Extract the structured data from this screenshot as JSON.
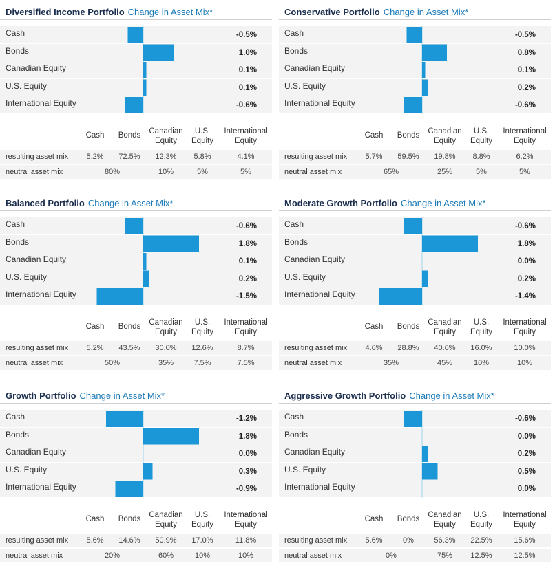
{
  "table_headers": {
    "cash": "Cash",
    "bonds": "Bonds",
    "canadian_equity": [
      "Canadian",
      "Equity"
    ],
    "us_equity": [
      "U.S.",
      "Equity"
    ],
    "international_equity": [
      "International",
      "Equity"
    ],
    "resulting_label": "resulting asset mix",
    "neutral_label": "neutral asset mix"
  },
  "colors": {
    "bar": "#1b96d6",
    "axis": "#9fd3ef"
  },
  "chart_data": [
    {
      "type": "bar",
      "orientation": "horizontal",
      "title": "Diversified Income Portfolio",
      "subtitle": "Change in Asset Mix*",
      "categories": [
        "Cash",
        "Bonds",
        "Canadian Equity",
        "U.S. Equity",
        "International Equity"
      ],
      "values": [
        -0.5,
        1.0,
        0.1,
        0.1,
        -0.6
      ],
      "value_labels": [
        "-0.5%",
        "1.0%",
        "0.1%",
        "0.1%",
        "-0.6%"
      ],
      "resulting_asset_mix": [
        "5.2%",
        "72.5%",
        "12.3%",
        "5.8%",
        "4.1%"
      ],
      "neutral_asset_mix": {
        "fixed_income": "80%",
        "canadian_equity": "10%",
        "us_equity": "5%",
        "international_equity": "5%"
      }
    },
    {
      "type": "bar",
      "orientation": "horizontal",
      "title": "Conservative Portfolio",
      "subtitle": "Change in Asset Mix*",
      "categories": [
        "Cash",
        "Bonds",
        "Canadian Equity",
        "U.S. Equity",
        "International Equity"
      ],
      "values": [
        -0.5,
        0.8,
        0.1,
        0.2,
        -0.6
      ],
      "value_labels": [
        "-0.5%",
        "0.8%",
        "0.1%",
        "0.2%",
        "-0.6%"
      ],
      "resulting_asset_mix": [
        "5.7%",
        "59.5%",
        "19.8%",
        "8.8%",
        "6.2%"
      ],
      "neutral_asset_mix": {
        "fixed_income": "65%",
        "canadian_equity": "25%",
        "us_equity": "5%",
        "international_equity": "5%"
      }
    },
    {
      "type": "bar",
      "orientation": "horizontal",
      "title": "Balanced Portfolio",
      "subtitle": "Change in Asset Mix*",
      "categories": [
        "Cash",
        "Bonds",
        "Canadian Equity",
        "U.S. Equity",
        "International Equity"
      ],
      "values": [
        -0.6,
        1.8,
        0.1,
        0.2,
        -1.5
      ],
      "value_labels": [
        "-0.6%",
        "1.8%",
        "0.1%",
        "0.2%",
        "-1.5%"
      ],
      "resulting_asset_mix": [
        "5.2%",
        "43.5%",
        "30.0%",
        "12.6%",
        "8.7%"
      ],
      "neutral_asset_mix": {
        "fixed_income": "50%",
        "canadian_equity": "35%",
        "us_equity": "7.5%",
        "international_equity": "7.5%"
      }
    },
    {
      "type": "bar",
      "orientation": "horizontal",
      "title": "Moderate Growth Portfolio",
      "subtitle": "Change in Asset Mix*",
      "categories": [
        "Cash",
        "Bonds",
        "Canadian Equity",
        "U.S. Equity",
        "International Equity"
      ],
      "values": [
        -0.6,
        1.8,
        0.0,
        0.2,
        -1.4
      ],
      "value_labels": [
        "-0.6%",
        "1.8%",
        "0.0%",
        "0.2%",
        "-1.4%"
      ],
      "resulting_asset_mix": [
        "4.6%",
        "28.8%",
        "40.6%",
        "16.0%",
        "10.0%"
      ],
      "neutral_asset_mix": {
        "fixed_income": "35%",
        "canadian_equity": "45%",
        "us_equity": "10%",
        "international_equity": "10%"
      }
    },
    {
      "type": "bar",
      "orientation": "horizontal",
      "title": "Growth Portfolio",
      "subtitle": "Change in Asset Mix*",
      "categories": [
        "Cash",
        "Bonds",
        "Canadian Equity",
        "U.S. Equity",
        "International Equity"
      ],
      "values": [
        -1.2,
        1.8,
        0.0,
        0.3,
        -0.9
      ],
      "value_labels": [
        "-1.2%",
        "1.8%",
        "0.0%",
        "0.3%",
        "-0.9%"
      ],
      "resulting_asset_mix": [
        "5.6%",
        "14.6%",
        "50.9%",
        "17.0%",
        "11.8%"
      ],
      "neutral_asset_mix": {
        "fixed_income": "20%",
        "canadian_equity": "60%",
        "us_equity": "10%",
        "international_equity": "10%"
      }
    },
    {
      "type": "bar",
      "orientation": "horizontal",
      "title": "Aggressive Growth Portfolio",
      "subtitle": "Change in Asset Mix*",
      "categories": [
        "Cash",
        "Bonds",
        "Canadian Equity",
        "U.S. Equity",
        "International Equity"
      ],
      "values": [
        -0.6,
        0.0,
        0.2,
        0.5,
        0.0
      ],
      "value_labels": [
        "-0.6%",
        "0.0%",
        "0.2%",
        "0.5%",
        "0.0%"
      ],
      "resulting_asset_mix": [
        "5.6%",
        "0%",
        "56.3%",
        "22.5%",
        "15.6%"
      ],
      "neutral_asset_mix": {
        "fixed_income": "0%",
        "canadian_equity": "75%",
        "us_equity": "12.5%",
        "international_equity": "12.5%"
      }
    }
  ]
}
